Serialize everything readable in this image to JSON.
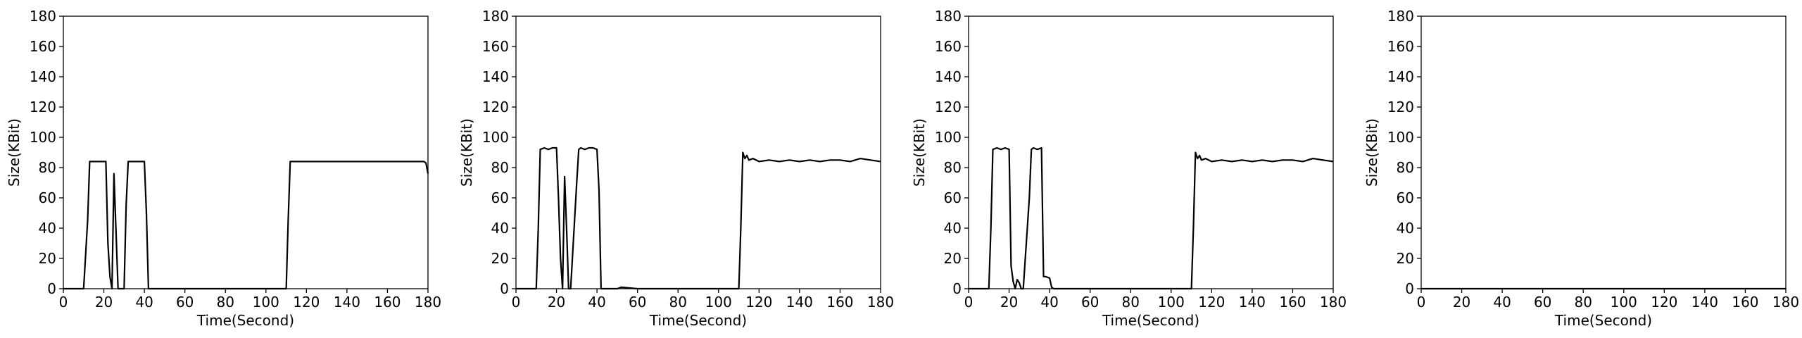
{
  "chart_data": [
    {
      "type": "line",
      "xlabel": "Time(Second)",
      "ylabel": "Size(KBit)",
      "xlim": [
        0,
        180
      ],
      "ylim": [
        0,
        180
      ],
      "xticks": [
        0,
        20,
        40,
        60,
        80,
        100,
        120,
        140,
        160,
        180
      ],
      "yticks": [
        0,
        20,
        40,
        60,
        80,
        100,
        120,
        140,
        160,
        180
      ],
      "grid": false,
      "series": [
        {
          "color": "#000000",
          "x": [
            0,
            10,
            12,
            13,
            18,
            21,
            22,
            23,
            24,
            25,
            26,
            27,
            30,
            31,
            32,
            38,
            40,
            41,
            42,
            50,
            60,
            70,
            80,
            90,
            100,
            110,
            111,
            112,
            113,
            120,
            130,
            140,
            150,
            160,
            170,
            178,
            179,
            180
          ],
          "y": [
            0,
            0,
            45,
            84,
            84,
            84,
            30,
            8,
            0,
            76,
            38,
            0,
            0,
            55,
            84,
            84,
            84,
            50,
            0,
            0,
            0,
            0,
            0,
            0,
            0,
            0,
            45,
            84,
            84,
            84,
            84,
            84,
            84,
            84,
            84,
            84,
            83,
            76
          ]
        }
      ]
    },
    {
      "type": "line",
      "xlabel": "Time(Second)",
      "ylabel": "Size(KBit)",
      "xlim": [
        0,
        180
      ],
      "ylim": [
        0,
        180
      ],
      "xticks": [
        0,
        20,
        40,
        60,
        80,
        100,
        120,
        140,
        160,
        180
      ],
      "yticks": [
        0,
        20,
        40,
        60,
        80,
        100,
        120,
        140,
        160,
        180
      ],
      "grid": false,
      "series": [
        {
          "color": "#000000",
          "x": [
            0,
            10,
            11,
            12,
            14,
            16,
            18,
            20,
            21,
            22,
            23,
            24,
            25,
            26,
            27,
            30,
            31,
            32,
            34,
            36,
            38,
            40,
            41,
            42,
            50,
            52,
            60,
            70,
            80,
            90,
            100,
            110,
            111,
            112,
            113,
            114,
            115,
            117,
            120,
            125,
            130,
            135,
            140,
            145,
            150,
            155,
            160,
            165,
            170,
            175,
            180
          ],
          "y": [
            0,
            0,
            40,
            92,
            93,
            92,
            93,
            93,
            60,
            20,
            0,
            74,
            40,
            0,
            0,
            70,
            92,
            93,
            92,
            93,
            93,
            92,
            65,
            0,
            0,
            1,
            0,
            0,
            0,
            0,
            0,
            0,
            40,
            90,
            86,
            88,
            85,
            86,
            84,
            85,
            84,
            85,
            84,
            85,
            84,
            85,
            85,
            84,
            86,
            85,
            84
          ]
        }
      ]
    },
    {
      "type": "line",
      "xlabel": "Time(Second)",
      "ylabel": "Size(KBit)",
      "xlim": [
        0,
        180
      ],
      "ylim": [
        0,
        180
      ],
      "xticks": [
        0,
        20,
        40,
        60,
        80,
        100,
        120,
        140,
        160,
        180
      ],
      "yticks": [
        0,
        20,
        40,
        60,
        80,
        100,
        120,
        140,
        160,
        180
      ],
      "grid": false,
      "series": [
        {
          "color": "#000000",
          "x": [
            0,
            10,
            11,
            12,
            14,
            16,
            18,
            20,
            21,
            22,
            23,
            24,
            25,
            26,
            27,
            30,
            31,
            32,
            34,
            36,
            37,
            38,
            40,
            41,
            42,
            50,
            60,
            70,
            80,
            90,
            100,
            110,
            111,
            112,
            113,
            114,
            115,
            117,
            120,
            125,
            130,
            135,
            140,
            145,
            150,
            155,
            160,
            165,
            170,
            175,
            180
          ],
          "y": [
            0,
            0,
            40,
            92,
            93,
            92,
            93,
            92,
            15,
            5,
            0,
            6,
            4,
            0,
            0,
            60,
            92,
            93,
            92,
            93,
            8,
            8,
            7,
            1,
            0,
            0,
            0,
            0,
            0,
            0,
            0,
            0,
            40,
            90,
            86,
            88,
            85,
            86,
            84,
            85,
            84,
            85,
            84,
            85,
            84,
            85,
            85,
            84,
            86,
            85,
            84
          ]
        }
      ]
    },
    {
      "type": "line",
      "xlabel": "Time(Second)",
      "ylabel": "Size(KBit)",
      "xlim": [
        0,
        180
      ],
      "ylim": [
        0,
        180
      ],
      "xticks": [
        0,
        20,
        40,
        60,
        80,
        100,
        120,
        140,
        160,
        180
      ],
      "yticks": [
        0,
        20,
        40,
        60,
        80,
        100,
        120,
        140,
        160,
        180
      ],
      "grid": false,
      "series": [
        {
          "color": "#000000",
          "x": [
            0,
            180
          ],
          "y": [
            0,
            0
          ]
        }
      ]
    }
  ]
}
